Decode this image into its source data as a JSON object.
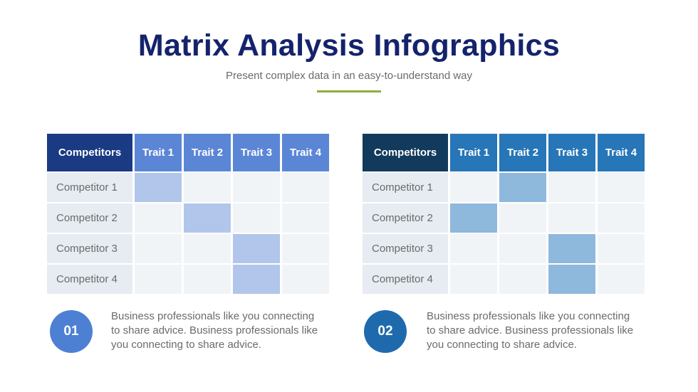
{
  "title": "Matrix Analysis Infographics",
  "subtitle": "Present complex data in an easy-to-understand way",
  "colors": {
    "title": "#14236b",
    "accent_line": "#8fae3b",
    "left_header_first": "#1a3a84",
    "left_header_trait": "#5b86d6",
    "left_filled": "#b2c6ec",
    "right_header_first": "#123a5c",
    "right_header_trait": "#2676b8",
    "right_filled": "#8fb8dd"
  },
  "matrices": [
    {
      "header": [
        "Competitors",
        "Trait 1",
        "Trait 2",
        "Trait 3",
        "Trait 4"
      ],
      "rows": [
        {
          "label": "Competitor 1",
          "filled": [
            1,
            0,
            0,
            0
          ]
        },
        {
          "label": "Competitor 2",
          "filled": [
            0,
            1,
            0,
            0
          ]
        },
        {
          "label": "Competitor 3",
          "filled": [
            0,
            0,
            1,
            0
          ]
        },
        {
          "label": "Competitor 4",
          "filled": [
            0,
            0,
            1,
            0
          ]
        }
      ],
      "badge": "01",
      "description": "Business professionals like you connecting to share advice. Business professionals like you connecting to share advice."
    },
    {
      "header": [
        "Competitors",
        "Trait 1",
        "Trait 2",
        "Trait 3",
        "Trait 4"
      ],
      "rows": [
        {
          "label": "Competitor 1",
          "filled": [
            0,
            1,
            0,
            0
          ]
        },
        {
          "label": "Competitor 2",
          "filled": [
            1,
            0,
            0,
            0
          ]
        },
        {
          "label": "Competitor 3",
          "filled": [
            0,
            0,
            1,
            0
          ]
        },
        {
          "label": "Competitor 4",
          "filled": [
            0,
            0,
            1,
            0
          ]
        }
      ],
      "badge": "02",
      "description": "Business professionals like you connecting to share advice. Business professionals like you connecting to share advice."
    }
  ]
}
